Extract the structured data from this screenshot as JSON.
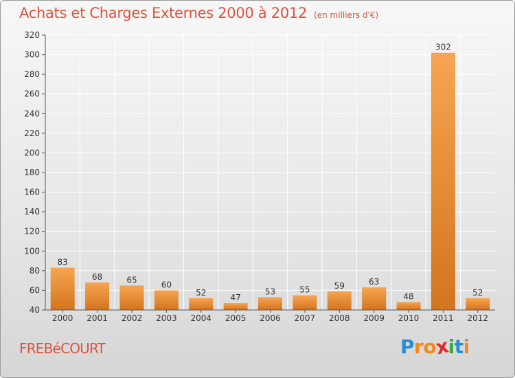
{
  "title": "Achats et Charges Externes 2000 à 2012",
  "subtitle": "(en milliers d'€)",
  "commune": "FREBéCOURT",
  "logo": {
    "letters": [
      "P",
      "r",
      "o",
      "x",
      "i",
      "t",
      "i"
    ],
    "colors": [
      "#2a8dd4",
      "#f08a1c",
      "#f08a1c",
      "#e02a2a",
      "#3aa84a",
      "#2a8dd4",
      "#f08a1c"
    ]
  },
  "colors": {
    "title": "#d9553f",
    "bar_light": "#f6a552",
    "bar_dark": "#d4741e",
    "grid": "#ffffff"
  },
  "chart_data": {
    "type": "bar",
    "title": "Achats et Charges Externes 2000 à 2012",
    "subtitle": "(en milliers d'€)",
    "categories": [
      "2000",
      "2001",
      "2002",
      "2003",
      "2004",
      "2005",
      "2006",
      "2007",
      "2008",
      "2009",
      "2010",
      "2011",
      "2012"
    ],
    "values": [
      83,
      68,
      65,
      60,
      52,
      47,
      53,
      55,
      59,
      63,
      48,
      302,
      52
    ],
    "ylim": [
      40,
      320
    ],
    "yticks": [
      40,
      60,
      80,
      100,
      120,
      140,
      160,
      180,
      200,
      220,
      240,
      260,
      280,
      300,
      320
    ],
    "grid": true,
    "data_labels": true
  }
}
